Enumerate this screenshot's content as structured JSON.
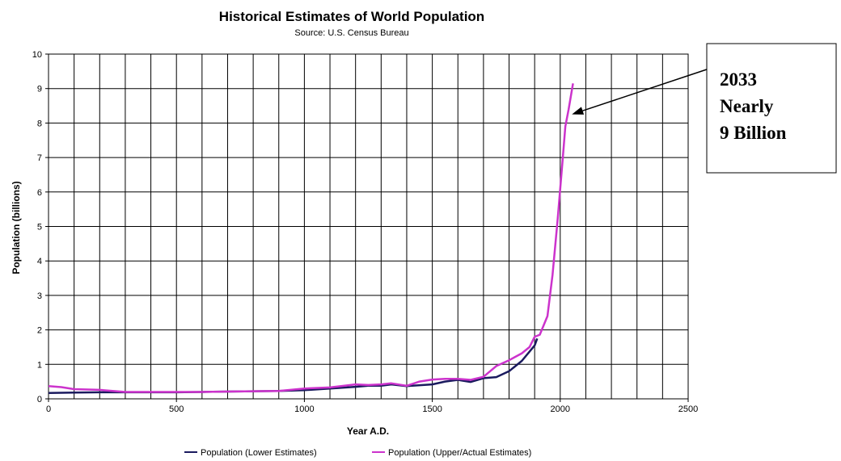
{
  "chart_data": {
    "type": "line",
    "title": "Historical Estimates of World Population",
    "subtitle": "Source: U.S. Census Bureau",
    "xlabel": "Year A.D.",
    "ylabel": "Population (billions)",
    "xlim": [
      0,
      2500
    ],
    "ylim": [
      0,
      10
    ],
    "xticks": [
      0,
      500,
      1000,
      1500,
      2000,
      2500
    ],
    "yticks": [
      0,
      1,
      2,
      3,
      4,
      5,
      6,
      7,
      8,
      9,
      10
    ],
    "grid": true,
    "legend_position": "bottom",
    "series": [
      {
        "name": "Population (Lower Estimates)",
        "color": "#1a1a5e",
        "points": [
          [
            0,
            0.17
          ],
          [
            100,
            0.18
          ],
          [
            200,
            0.19
          ],
          [
            300,
            0.19
          ],
          [
            400,
            0.19
          ],
          [
            500,
            0.19
          ],
          [
            600,
            0.2
          ],
          [
            700,
            0.21
          ],
          [
            800,
            0.22
          ],
          [
            900,
            0.23
          ],
          [
            1000,
            0.25
          ],
          [
            1100,
            0.3
          ],
          [
            1200,
            0.35
          ],
          [
            1250,
            0.38
          ],
          [
            1300,
            0.38
          ],
          [
            1340,
            0.42
          ],
          [
            1400,
            0.37
          ],
          [
            1500,
            0.42
          ],
          [
            1550,
            0.5
          ],
          [
            1600,
            0.55
          ],
          [
            1650,
            0.49
          ],
          [
            1700,
            0.6
          ],
          [
            1750,
            0.63
          ],
          [
            1800,
            0.8
          ],
          [
            1850,
            1.1
          ],
          [
            1900,
            1.55
          ],
          [
            1910,
            1.75
          ]
        ]
      },
      {
        "name": "Population (Upper/Actual Estimates)",
        "color": "#cc33cc",
        "points": [
          [
            0,
            0.37
          ],
          [
            50,
            0.34
          ],
          [
            100,
            0.28
          ],
          [
            200,
            0.26
          ],
          [
            300,
            0.2
          ],
          [
            400,
            0.2
          ],
          [
            500,
            0.2
          ],
          [
            600,
            0.2
          ],
          [
            700,
            0.21
          ],
          [
            800,
            0.22
          ],
          [
            900,
            0.23
          ],
          [
            1000,
            0.3
          ],
          [
            1100,
            0.33
          ],
          [
            1200,
            0.42
          ],
          [
            1250,
            0.4
          ],
          [
            1300,
            0.42
          ],
          [
            1340,
            0.45
          ],
          [
            1400,
            0.38
          ],
          [
            1450,
            0.5
          ],
          [
            1500,
            0.56
          ],
          [
            1550,
            0.58
          ],
          [
            1600,
            0.58
          ],
          [
            1650,
            0.55
          ],
          [
            1700,
            0.64
          ],
          [
            1750,
            0.95
          ],
          [
            1800,
            1.12
          ],
          [
            1850,
            1.32
          ],
          [
            1880,
            1.5
          ],
          [
            1900,
            1.8
          ],
          [
            1920,
            1.86
          ],
          [
            1950,
            2.4
          ],
          [
            1970,
            3.6
          ],
          [
            1990,
            5.2
          ],
          [
            2000,
            6.1
          ],
          [
            2010,
            7.0
          ],
          [
            2020,
            7.9
          ],
          [
            2033,
            8.4
          ],
          [
            2050,
            9.15
          ]
        ]
      }
    ],
    "annotation": {
      "lines": [
        "2033",
        "Nearly",
        "9 Billion"
      ],
      "points_to": [
        2033,
        8.3
      ]
    }
  }
}
